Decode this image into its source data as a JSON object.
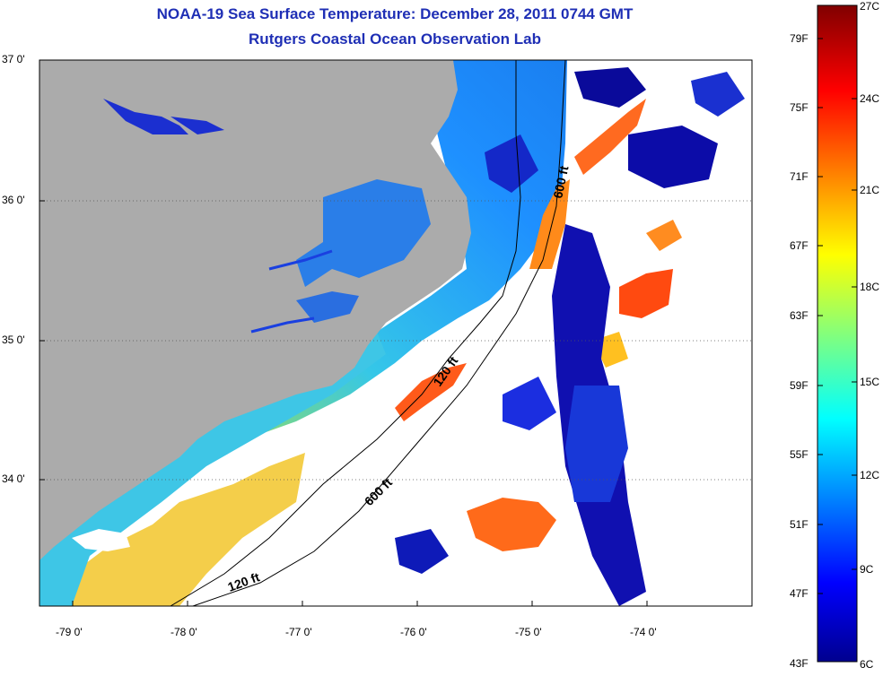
{
  "title": "NOAA-19 Sea Surface Temperature:  December 28, 2011 0744 GMT",
  "subtitle": "Rutgers Coastal Ocean Observation Lab",
  "y_ticks": [
    "37 0'",
    "36 0'",
    "35 0'",
    "34 0'"
  ],
  "x_ticks": [
    "-79 0'",
    "-78 0'",
    "-77 0'",
    "-76 0'",
    "-75 0'",
    "-74 0'"
  ],
  "contours": {
    "upper_600": "600 ft",
    "mid_120": "120 ft",
    "lower_600": "600 ft",
    "lower_120": "120 ft"
  },
  "colorbar": {
    "f_labels": [
      "79F",
      "75F",
      "71F",
      "67F",
      "63F",
      "59F",
      "55F",
      "51F",
      "47F",
      "43F"
    ],
    "c_labels": [
      "27C",
      "24C",
      "21C",
      "18C",
      "15C",
      "12C",
      "9C",
      "6C"
    ]
  },
  "colors": {
    "title": "#1f2fb5",
    "land": "#ababab",
    "no_data": "#ffffff"
  }
}
